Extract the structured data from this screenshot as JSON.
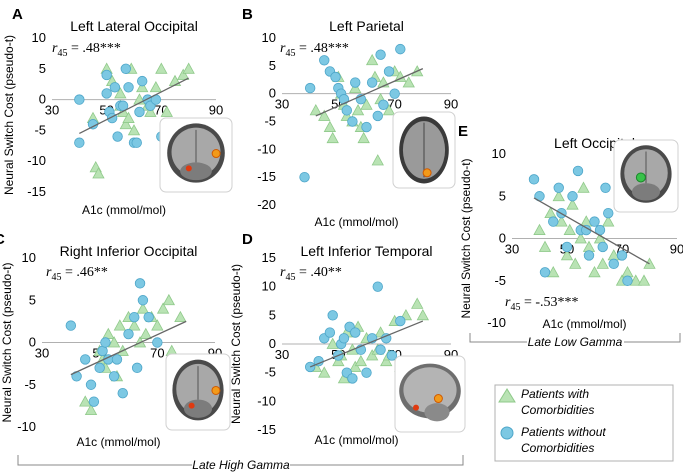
{
  "colors": {
    "triangle_fill": "#b9e3b4",
    "triangle_stroke": "#8fc98a",
    "circle_fill": "#7cc8e3",
    "circle_stroke": "#4ea6c9",
    "zero_line": "#b0b0b0",
    "trend_line": "#666666"
  },
  "legend": {
    "items": [
      {
        "marker": "triangle",
        "line1": "Patients with",
        "line2": "Comorbidities"
      },
      {
        "marker": "circle",
        "line1": "Patients without",
        "line2": "Comorbidities"
      }
    ]
  },
  "group_labels": {
    "late_high_gamma": "Late High Gamma",
    "late_low_gamma": "Late Low Gamma"
  },
  "chart_data": [
    {
      "type": "scatter",
      "panel": "A",
      "title": "Left Lateral Occipital",
      "ylabel": "Neural Switch Cost (pseudo-t)",
      "xlabel": "A1c (mmol/mol)",
      "xlim": [
        30,
        90
      ],
      "ylim": [
        -15,
        10
      ],
      "xticks": [
        "30",
        "50",
        "70",
        "90"
      ],
      "yticks": [
        "10",
        "5",
        "0",
        "-5",
        "-10",
        "-15"
      ],
      "annotation": {
        "sym": "r",
        "sub": "45",
        "val": " = .48***"
      },
      "trend": [
        [
          40,
          -5.5
        ],
        [
          80,
          3.5
        ]
      ],
      "brain_view": "coronal",
      "series": [
        {
          "name": "Patients with Comorbidities",
          "marker": "triangle",
          "points": [
            [
              45,
              -3
            ],
            [
              46,
              -11
            ],
            [
              47,
              -12
            ],
            [
              50,
              5
            ],
            [
              52,
              3
            ],
            [
              55,
              -1
            ],
            [
              55,
              1
            ],
            [
              56,
              -2
            ],
            [
              57,
              -4
            ],
            [
              58,
              -3
            ],
            [
              59,
              5
            ],
            [
              60,
              -5
            ],
            [
              62,
              0
            ],
            [
              63,
              2
            ],
            [
              65,
              -1
            ],
            [
              66,
              -2
            ],
            [
              68,
              2
            ],
            [
              70,
              5
            ],
            [
              72,
              -2
            ],
            [
              75,
              3
            ],
            [
              78,
              4
            ],
            [
              80,
              5
            ]
          ]
        },
        {
          "name": "Patients without Comorbidities",
          "marker": "circle",
          "points": [
            [
              40,
              0
            ],
            [
              40,
              -7
            ],
            [
              45,
              -4
            ],
            [
              50,
              4
            ],
            [
              50,
              1
            ],
            [
              51,
              -2
            ],
            [
              52,
              -3
            ],
            [
              53,
              2
            ],
            [
              54,
              -6
            ],
            [
              55,
              -1
            ],
            [
              56,
              -1
            ],
            [
              57,
              5
            ],
            [
              58,
              2
            ],
            [
              60,
              -7
            ],
            [
              61,
              -7
            ],
            [
              62,
              -2
            ],
            [
              63,
              3
            ],
            [
              65,
              0
            ],
            [
              66,
              -1
            ],
            [
              68,
              0
            ],
            [
              70,
              -6
            ]
          ]
        }
      ]
    },
    {
      "type": "scatter",
      "panel": "B",
      "title": "Left Parietal",
      "ylabel": "",
      "xlabel": "A1c (mmol/mol)",
      "xlim": [
        30,
        90
      ],
      "ylim": [
        -20,
        10
      ],
      "xticks": [
        "30",
        "50",
        "70",
        "90"
      ],
      "yticks": [
        "10",
        "5",
        "0",
        "-5",
        "-10",
        "-15",
        "-20"
      ],
      "annotation": {
        "sym": "r",
        "sub": "45",
        "val": " = .48***"
      },
      "trend": [
        [
          42,
          -4
        ],
        [
          80,
          4.5
        ]
      ],
      "brain_view": "axial",
      "series": [
        {
          "name": "Patients with Comorbidities",
          "marker": "triangle",
          "points": [
            [
              42,
              -3
            ],
            [
              45,
              -4
            ],
            [
              47,
              -6
            ],
            [
              48,
              -8
            ],
            [
              50,
              3
            ],
            [
              51,
              0
            ],
            [
              52,
              -2
            ],
            [
              53,
              -4
            ],
            [
              55,
              -5
            ],
            [
              56,
              1
            ],
            [
              57,
              -3
            ],
            [
              58,
              -6
            ],
            [
              59,
              -8
            ],
            [
              60,
              -2
            ],
            [
              62,
              6
            ],
            [
              63,
              3
            ],
            [
              64,
              -12
            ],
            [
              65,
              -1
            ],
            [
              66,
              2
            ],
            [
              68,
              -3
            ],
            [
              70,
              4
            ],
            [
              72,
              3
            ],
            [
              75,
              2
            ],
            [
              78,
              4
            ]
          ]
        },
        {
          "name": "Patients without Comorbidities",
          "marker": "circle",
          "points": [
            [
              38,
              -15
            ],
            [
              40,
              1
            ],
            [
              45,
              6
            ],
            [
              47,
              4
            ],
            [
              49,
              3
            ],
            [
              50,
              1
            ],
            [
              51,
              0
            ],
            [
              52,
              -1
            ],
            [
              53,
              -3
            ],
            [
              55,
              -5
            ],
            [
              56,
              2
            ],
            [
              58,
              -1
            ],
            [
              60,
              -6
            ],
            [
              62,
              2
            ],
            [
              64,
              -4
            ],
            [
              65,
              7
            ],
            [
              66,
              -2
            ],
            [
              68,
              4
            ],
            [
              70,
              0
            ],
            [
              72,
              8
            ]
          ]
        }
      ]
    },
    {
      "type": "scatter",
      "panel": "C",
      "title": "Right Inferior Occipital",
      "ylabel": "Neural Switch Cost (pseudo-t)",
      "xlabel": "A1c (mmol/mol)",
      "xlim": [
        30,
        90
      ],
      "ylim": [
        -10,
        10
      ],
      "xticks": [
        "30",
        "50",
        "70",
        "90"
      ],
      "yticks": [
        "10",
        "5",
        "0",
        "-5",
        "-10"
      ],
      "annotation": {
        "sym": "r",
        "sub": "45",
        "val": " = .46**"
      },
      "trend": [
        [
          40,
          -3.8
        ],
        [
          80,
          2.5
        ]
      ],
      "brain_view": "coronal",
      "series": [
        {
          "name": "Patients with Comorbidities",
          "marker": "triangle",
          "points": [
            [
              45,
              -7
            ],
            [
              47,
              -8
            ],
            [
              50,
              -1
            ],
            [
              51,
              -2
            ],
            [
              52,
              -3
            ],
            [
              53,
              1
            ],
            [
              55,
              0
            ],
            [
              56,
              -4
            ],
            [
              57,
              2
            ],
            [
              58,
              -1
            ],
            [
              60,
              3
            ],
            [
              62,
              2
            ],
            [
              64,
              0
            ],
            [
              65,
              4
            ],
            [
              66,
              1
            ],
            [
              68,
              3
            ],
            [
              70,
              2
            ],
            [
              72,
              4
            ],
            [
              74,
              5
            ],
            [
              75,
              -1
            ],
            [
              78,
              3
            ]
          ]
        },
        {
          "name": "Patients without Comorbidities",
          "marker": "circle",
          "points": [
            [
              40,
              2
            ],
            [
              42,
              -4
            ],
            [
              45,
              -2
            ],
            [
              47,
              -5
            ],
            [
              48,
              -7
            ],
            [
              50,
              -3
            ],
            [
              51,
              -1
            ],
            [
              52,
              0
            ],
            [
              53,
              -2
            ],
            [
              55,
              -4
            ],
            [
              56,
              -2
            ],
            [
              58,
              -6
            ],
            [
              60,
              1
            ],
            [
              62,
              3
            ],
            [
              63,
              -3
            ],
            [
              64,
              7
            ],
            [
              65,
              5
            ],
            [
              67,
              3
            ],
            [
              70,
              0
            ]
          ]
        }
      ]
    },
    {
      "type": "scatter",
      "panel": "D",
      "title": "Left Inferior Temporal",
      "ylabel": "Neural Switch Cost (pseudo-t)",
      "xlabel": "A1c (mmol/mol)",
      "xlim": [
        30,
        90
      ],
      "ylim": [
        -15,
        15
      ],
      "xticks": [
        "30",
        "50",
        "70",
        "90"
      ],
      "yticks": [
        "15",
        "10",
        "5",
        "0",
        "-5",
        "-10",
        "-15"
      ],
      "annotation": {
        "sym": "r",
        "sub": "45",
        "val": " = .40**"
      },
      "trend": [
        [
          40,
          -4
        ],
        [
          80,
          4
        ]
      ],
      "brain_view": "sagittal",
      "series": [
        {
          "name": "Patients with Comorbidities",
          "marker": "triangle",
          "points": [
            [
              42,
              -4
            ],
            [
              45,
              -5
            ],
            [
              48,
              0
            ],
            [
              50,
              -3
            ],
            [
              51,
              -2
            ],
            [
              52,
              -6
            ],
            [
              53,
              2
            ],
            [
              55,
              -1
            ],
            [
              56,
              -4
            ],
            [
              57,
              3
            ],
            [
              58,
              -3
            ],
            [
              60,
              1
            ],
            [
              62,
              -2
            ],
            [
              64,
              -1
            ],
            [
              65,
              2
            ],
            [
              67,
              -3
            ],
            [
              68,
              -2
            ],
            [
              70,
              4
            ],
            [
              72,
              -4
            ],
            [
              74,
              5
            ],
            [
              76,
              -8
            ],
            [
              78,
              7
            ],
            [
              80,
              5
            ]
          ]
        },
        {
          "name": "Patients without Comorbidities",
          "marker": "circle",
          "points": [
            [
              40,
              -4
            ],
            [
              43,
              -3
            ],
            [
              45,
              1
            ],
            [
              47,
              2
            ],
            [
              48,
              5
            ],
            [
              50,
              -2
            ],
            [
              51,
              0
            ],
            [
              52,
              1
            ],
            [
              53,
              -5
            ],
            [
              54,
              3
            ],
            [
              55,
              -6
            ],
            [
              56,
              2
            ],
            [
              58,
              -1
            ],
            [
              60,
              -5
            ],
            [
              62,
              1
            ],
            [
              64,
              10
            ],
            [
              65,
              -1
            ],
            [
              67,
              1
            ],
            [
              69,
              -2
            ],
            [
              72,
              4
            ]
          ]
        }
      ]
    },
    {
      "type": "scatter",
      "panel": "E",
      "title": "Left Occipital",
      "ylabel": "Neural Switch Cost (pseudo-t)",
      "xlabel": "A1c (mmol/mol)",
      "xlim": [
        30,
        90
      ],
      "ylim": [
        -10,
        10
      ],
      "xticks": [
        "30",
        "50",
        "70",
        "90"
      ],
      "yticks": [
        "10",
        "5",
        "0",
        "-5",
        "-10"
      ],
      "annotation": {
        "sym": "r",
        "sub": "45",
        "val": " = -.53***"
      },
      "trend": [
        [
          38,
          4.8
        ],
        [
          80,
          -3
        ]
      ],
      "brain_view": "coronal-green",
      "series": [
        {
          "name": "Patients with Comorbidities",
          "marker": "triangle",
          "points": [
            [
              40,
              1
            ],
            [
              42,
              -1
            ],
            [
              44,
              3
            ],
            [
              45,
              -4
            ],
            [
              47,
              5
            ],
            [
              48,
              2
            ],
            [
              50,
              -2
            ],
            [
              51,
              1
            ],
            [
              52,
              4
            ],
            [
              53,
              -3
            ],
            [
              55,
              0
            ],
            [
              56,
              6
            ],
            [
              57,
              2
            ],
            [
              58,
              -1
            ],
            [
              60,
              -4
            ],
            [
              62,
              0
            ],
            [
              63,
              -3
            ],
            [
              65,
              2
            ],
            [
              67,
              -2
            ],
            [
              70,
              -5
            ],
            [
              72,
              -4
            ],
            [
              75,
              -5
            ],
            [
              78,
              -5
            ],
            [
              80,
              -3
            ]
          ]
        },
        {
          "name": "Patients without Comorbidities",
          "marker": "circle",
          "points": [
            [
              38,
              7
            ],
            [
              40,
              5
            ],
            [
              42,
              -4
            ],
            [
              45,
              2
            ],
            [
              47,
              6
            ],
            [
              48,
              3
            ],
            [
              50,
              -1
            ],
            [
              52,
              5
            ],
            [
              54,
              8
            ],
            [
              55,
              1
            ],
            [
              57,
              1
            ],
            [
              58,
              -2
            ],
            [
              60,
              2
            ],
            [
              62,
              1
            ],
            [
              63,
              -1
            ],
            [
              64,
              6
            ],
            [
              65,
              3
            ],
            [
              67,
              -3
            ],
            [
              70,
              -2
            ],
            [
              72,
              -5
            ]
          ]
        }
      ]
    }
  ]
}
